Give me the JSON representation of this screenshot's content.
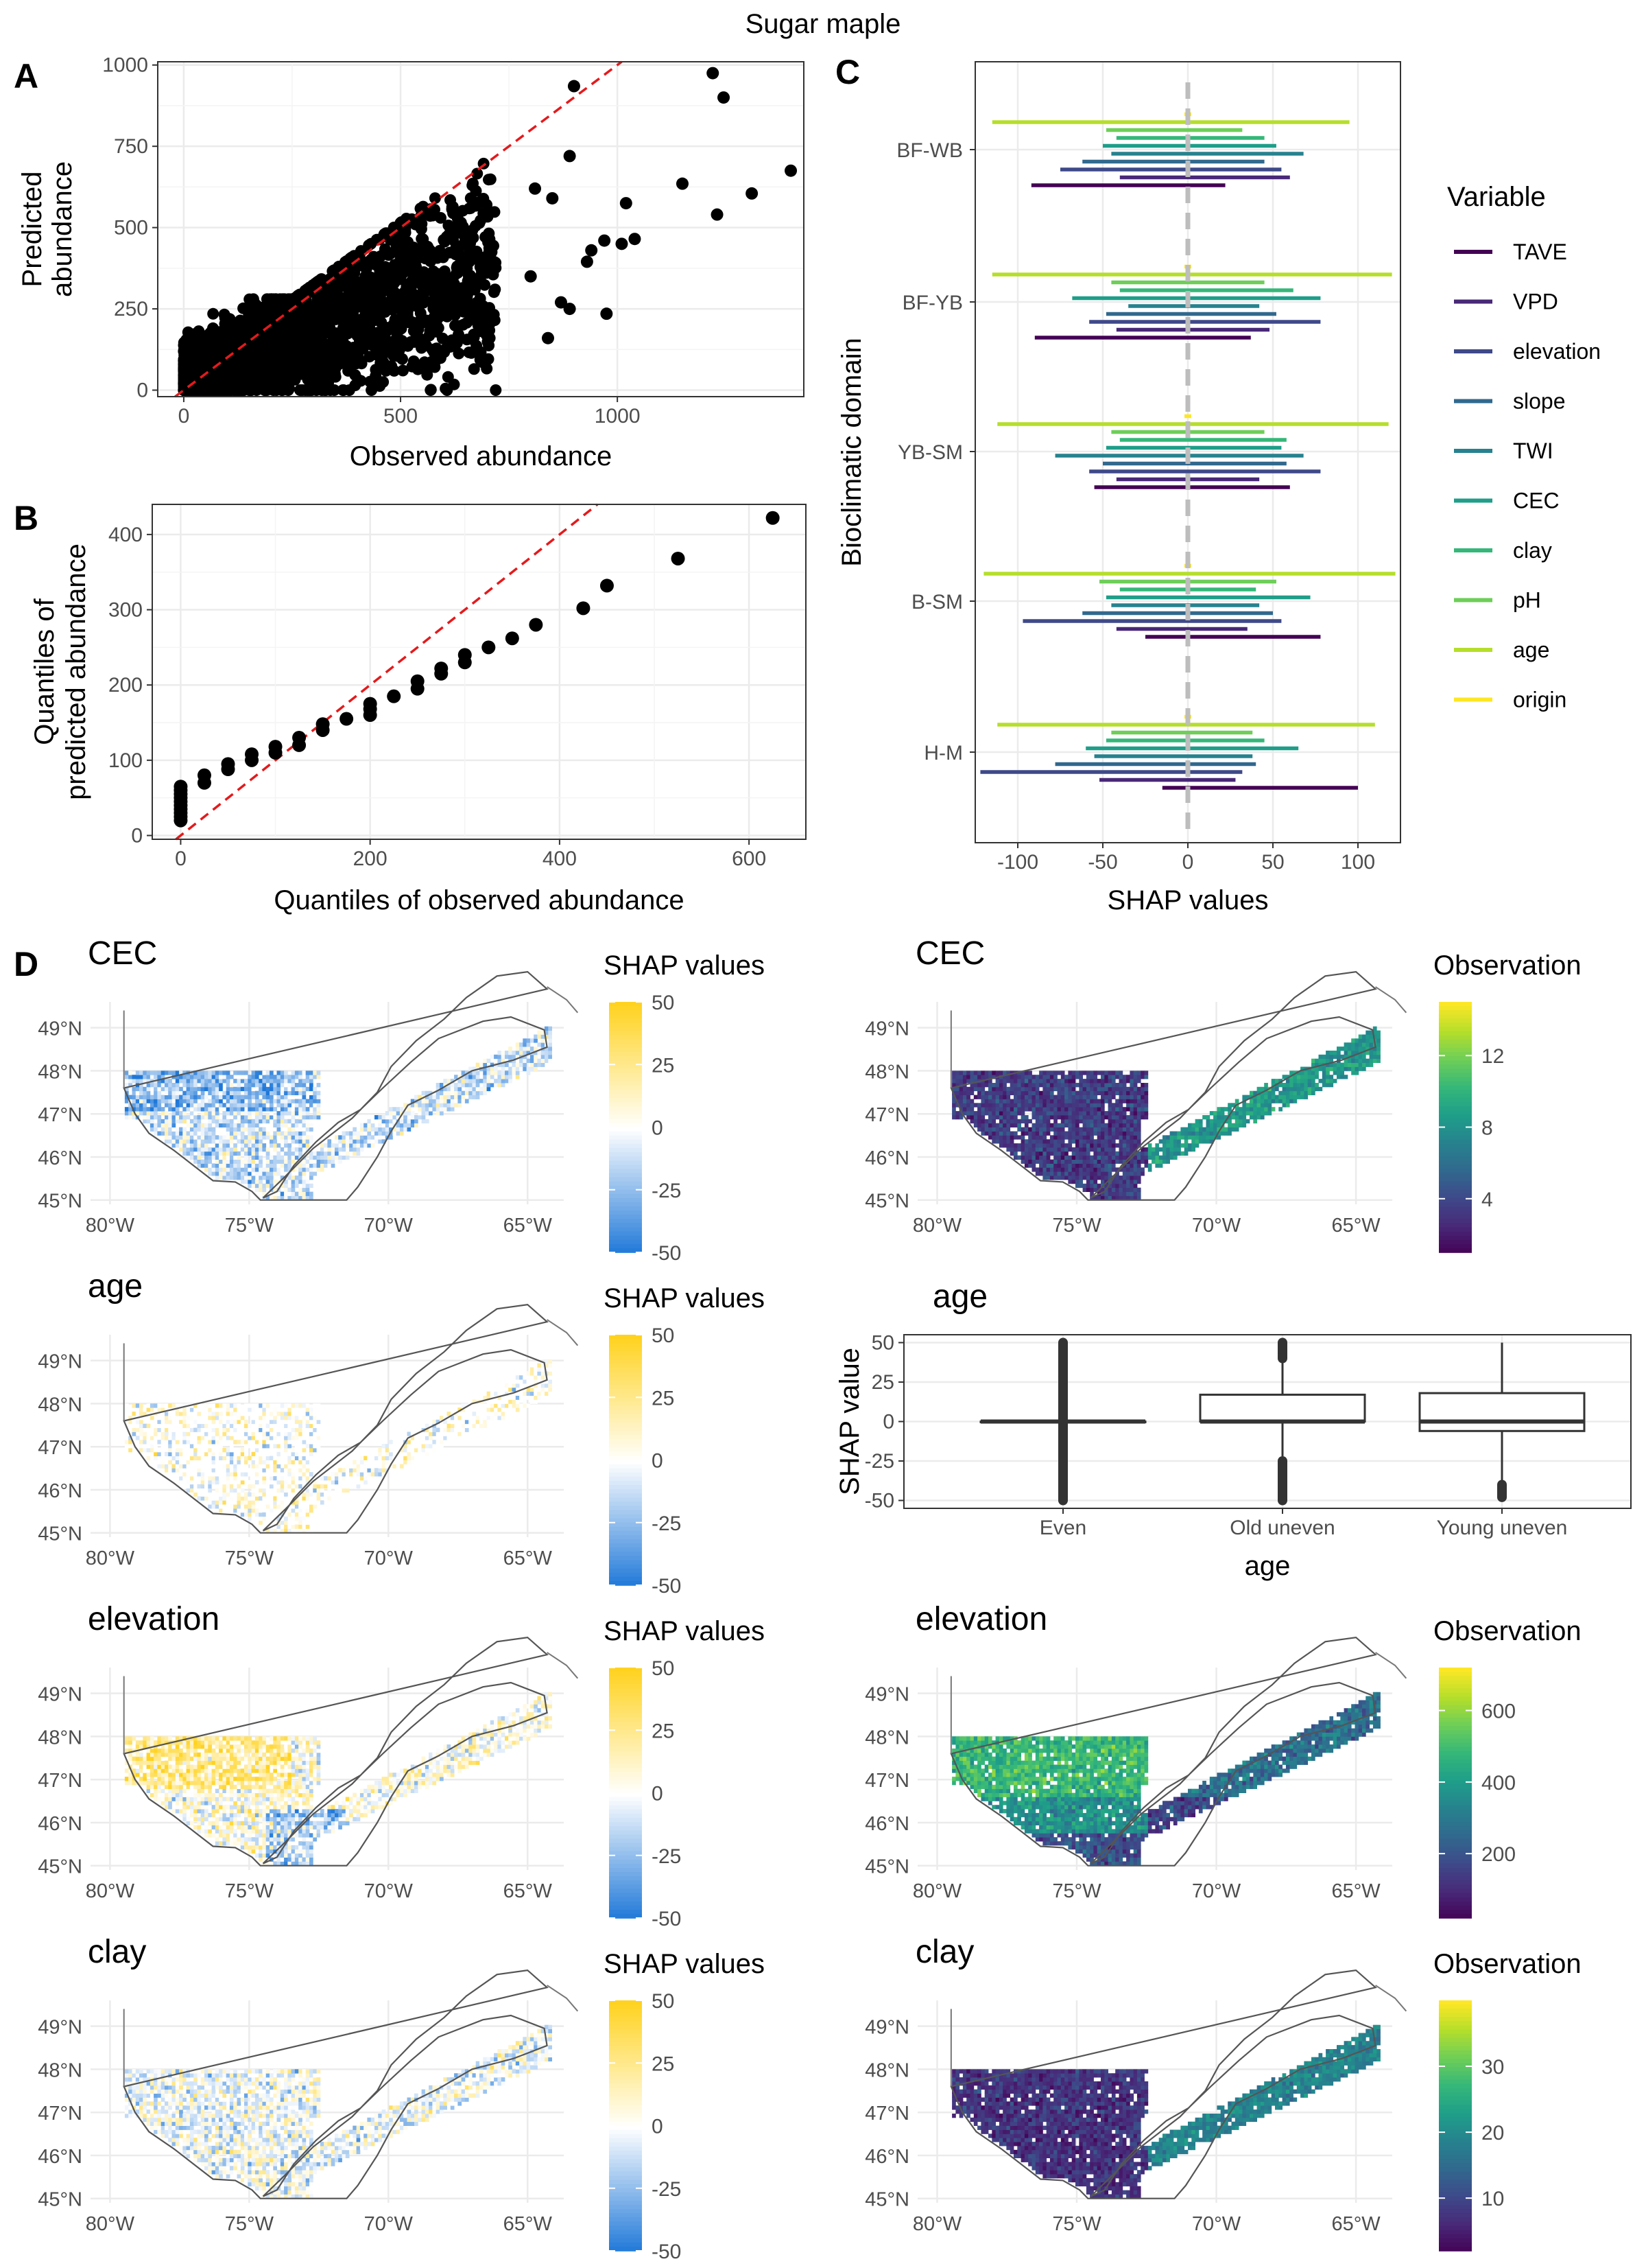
{
  "figure": {
    "title": "Sugar maple",
    "panel_letters": [
      "A",
      "B",
      "C",
      "D"
    ]
  },
  "colors": {
    "reference_line": "#e41a1c",
    "points": "#000000",
    "grid": "#ebebeb",
    "shap_low": "#1f78d8",
    "shap_mid": "#ffffff",
    "shap_high": "#ffd21f",
    "zero_line": "#bdbdbd",
    "viridis": [
      "#440154",
      "#482878",
      "#3e4989",
      "#31688e",
      "#26828e",
      "#1f9e89",
      "#35b779",
      "#6ece58",
      "#b5de2b",
      "#fde725"
    ]
  },
  "chart_data": [
    {
      "panel": "A",
      "type": "scatter",
      "xlabel": "Observed abundance",
      "ylabel": "Predicted abundance",
      "ylabel_lines": [
        "Predicted",
        "abundance"
      ],
      "xlim": [
        -60,
        1430
      ],
      "ylim": [
        -20,
        1010
      ],
      "xticks": [
        0,
        500,
        1000
      ],
      "xtick_labels": [
        "0",
        "500",
        "1000"
      ],
      "yticks": [
        0,
        250,
        500,
        750,
        1000
      ],
      "ytick_labels": [
        "0",
        "250",
        "500",
        "750",
        "1000"
      ],
      "reference_line": "y = x (dashed)",
      "outliers": [
        {
          "x": 900,
          "y": 935
        },
        {
          "x": 1220,
          "y": 975
        },
        {
          "x": 1245,
          "y": 900
        },
        {
          "x": 1400,
          "y": 675
        },
        {
          "x": 1310,
          "y": 605
        },
        {
          "x": 1230,
          "y": 540
        },
        {
          "x": 1150,
          "y": 635
        },
        {
          "x": 1020,
          "y": 575
        },
        {
          "x": 1040,
          "y": 465
        },
        {
          "x": 1010,
          "y": 450
        },
        {
          "x": 970,
          "y": 460
        },
        {
          "x": 940,
          "y": 430
        },
        {
          "x": 975,
          "y": 235
        },
        {
          "x": 930,
          "y": 395
        },
        {
          "x": 890,
          "y": 720
        },
        {
          "x": 850,
          "y": 590
        },
        {
          "x": 890,
          "y": 250
        },
        {
          "x": 870,
          "y": 270
        },
        {
          "x": 840,
          "y": 160
        },
        {
          "x": 810,
          "y": 620
        },
        {
          "x": 800,
          "y": 350
        }
      ]
    },
    {
      "panel": "B",
      "type": "scatter",
      "xlabel": "Quantiles of observed abundance",
      "ylabel_lines": [
        "Quantiles of",
        "predicted abundance"
      ],
      "xlim": [
        -30,
        660
      ],
      "ylim": [
        -5,
        440
      ],
      "xticks": [
        0,
        200,
        400,
        600
      ],
      "xtick_labels": [
        "0",
        "200",
        "400",
        "600"
      ],
      "yticks": [
        0,
        100,
        200,
        300,
        400
      ],
      "ytick_labels": [
        "0",
        "100",
        "200",
        "300",
        "400"
      ],
      "reference_line": "y = x (dashed)",
      "x": [
        0,
        0,
        0,
        0,
        0,
        0,
        0,
        0,
        0,
        0,
        25,
        25,
        50,
        50,
        75,
        75,
        100,
        100,
        125,
        125,
        150,
        150,
        175,
        200,
        200,
        200,
        225,
        250,
        250,
        275,
        275,
        300,
        300,
        325,
        350,
        375,
        425,
        450,
        525,
        625
      ],
      "y": [
        20,
        25,
        30,
        35,
        40,
        45,
        50,
        55,
        60,
        65,
        70,
        80,
        88,
        95,
        100,
        108,
        110,
        118,
        120,
        130,
        140,
        148,
        155,
        160,
        168,
        175,
        185,
        195,
        205,
        215,
        222,
        230,
        240,
        250,
        262,
        280,
        302,
        332,
        368,
        422
      ]
    },
    {
      "panel": "C",
      "type": "bar",
      "subtype": "horizontal range bars",
      "xlabel": "SHAP values",
      "ylabel": "Bioclimatic domain",
      "xlim": [
        -125,
        125
      ],
      "xticks": [
        -100,
        -50,
        0,
        50,
        100
      ],
      "xtick_labels": [
        "-100",
        "-50",
        "0",
        "50",
        "100"
      ],
      "legend_title": "Variable",
      "legend_position": "right",
      "variables": [
        "TAVE",
        "VPD",
        "elevation",
        "slope",
        "TWI",
        "CEC",
        "clay",
        "pH",
        "age",
        "origin"
      ],
      "domains": [
        "BF-WB",
        "BF-YB",
        "YB-SM",
        "B-SM",
        "H-M"
      ],
      "ranges": {
        "BF-WB": [
          [
            -92,
            22
          ],
          [
            -40,
            60
          ],
          [
            -75,
            55
          ],
          [
            -62,
            45
          ],
          [
            -45,
            68
          ],
          [
            -50,
            52
          ],
          [
            -42,
            45
          ],
          [
            -48,
            32
          ],
          [
            -115,
            95
          ],
          [
            -2,
            2
          ]
        ],
        "BF-YB": [
          [
            -90,
            37
          ],
          [
            -42,
            48
          ],
          [
            -58,
            78
          ],
          [
            -48,
            52
          ],
          [
            -35,
            42
          ],
          [
            -68,
            78
          ],
          [
            -40,
            62
          ],
          [
            -45,
            45
          ],
          [
            -115,
            120
          ],
          [
            -2,
            2
          ]
        ],
        "YB-SM": [
          [
            -55,
            60
          ],
          [
            -42,
            42
          ],
          [
            -58,
            78
          ],
          [
            -50,
            58
          ],
          [
            -78,
            68
          ],
          [
            -48,
            55
          ],
          [
            -40,
            58
          ],
          [
            -45,
            45
          ],
          [
            -112,
            118
          ],
          [
            -2,
            2
          ]
        ],
        "B-SM": [
          [
            -25,
            78
          ],
          [
            -42,
            35
          ],
          [
            -97,
            55
          ],
          [
            -62,
            50
          ],
          [
            -45,
            42
          ],
          [
            -48,
            72
          ],
          [
            -40,
            40
          ],
          [
            -52,
            52
          ],
          [
            -120,
            122
          ],
          [
            -2,
            2
          ]
        ],
        "H-M": [
          [
            -15,
            100
          ],
          [
            -52,
            28
          ],
          [
            -122,
            32
          ],
          [
            -78,
            40
          ],
          [
            -55,
            38
          ],
          [
            -60,
            65
          ],
          [
            -48,
            45
          ],
          [
            -45,
            38
          ],
          [
            -112,
            110
          ],
          [
            -2,
            2
          ]
        ]
      }
    },
    {
      "panel": "D",
      "type": "heatmap",
      "subtype": "maps",
      "lon_ticks": [
        -80,
        -75,
        -70,
        -65
      ],
      "lon_labels": [
        "80°W",
        "75°W",
        "70°W",
        "65°W"
      ],
      "lat_ticks": [
        45,
        46,
        47,
        48,
        49
      ],
      "lat_labels": [
        "45°N",
        "46°N",
        "47°N",
        "48°N",
        "49°N"
      ],
      "rows": [
        {
          "variable": "CEC",
          "shap_legend": "SHAP values",
          "shap_range": [
            -50,
            50
          ],
          "shap_ticks": [
            "50",
            "25",
            "0",
            "-25",
            "-50"
          ],
          "shap_tendency": -0.35,
          "obs_legend": "Observation",
          "obs_range": [
            1,
            15
          ],
          "obs_ticks": [
            "12",
            "8",
            "4"
          ],
          "obs_tick_values": [
            12,
            8,
            4
          ]
        },
        {
          "variable": "age",
          "shap_legend": "SHAP values",
          "shap_range": [
            -50,
            50
          ],
          "shap_ticks": [
            "50",
            "25",
            "0",
            "-25",
            "-50"
          ],
          "shap_tendency": 0.15
        },
        {
          "variable": "elevation",
          "shap_legend": "SHAP values",
          "shap_range": [
            -50,
            50
          ],
          "shap_ticks": [
            "50",
            "25",
            "0",
            "-25",
            "-50"
          ],
          "shap_tendency": 0.2,
          "obs_legend": "Observation",
          "obs_range": [
            20,
            720
          ],
          "obs_ticks": [
            "600",
            "400",
            "200"
          ],
          "obs_tick_values": [
            600,
            400,
            200
          ]
        },
        {
          "variable": "clay",
          "shap_legend": "SHAP values",
          "shap_range": [
            -50,
            50
          ],
          "shap_ticks": [
            "50",
            "25",
            "0",
            "-25",
            "-50"
          ],
          "shap_tendency": -0.05,
          "obs_legend": "Observation",
          "obs_range": [
            2,
            40
          ],
          "obs_ticks": [
            "30",
            "20",
            "10"
          ],
          "obs_tick_values": [
            30,
            20,
            10
          ]
        }
      ],
      "age_boxplot": {
        "title": "age",
        "xlabel": "age",
        "ylabel": "SHAP value",
        "categories": [
          "Even",
          "Old uneven",
          "Young uneven"
        ],
        "ylim": [
          -55,
          55
        ],
        "yticks": [
          50,
          25,
          0,
          -25,
          -50
        ],
        "ytick_labels": [
          "50",
          "25",
          "0",
          "-25",
          "-50"
        ],
        "boxes": [
          {
            "q1": 0,
            "median": 0,
            "q3": 0,
            "whisker_low": 0,
            "whisker_high": 0,
            "outlier_span": [
              -50,
              50
            ]
          },
          {
            "q1": 0,
            "median": 0,
            "q3": 17,
            "whisker_low": -22,
            "whisker_high": 40,
            "outlier_low": [
              -25,
              -50
            ],
            "outlier_high": [
              40,
              50
            ]
          },
          {
            "q1": -6,
            "median": 0,
            "q3": 18,
            "whisker_low": -38,
            "whisker_high": 50,
            "outlier_low": [
              -40,
              -48
            ]
          }
        ]
      }
    }
  ]
}
